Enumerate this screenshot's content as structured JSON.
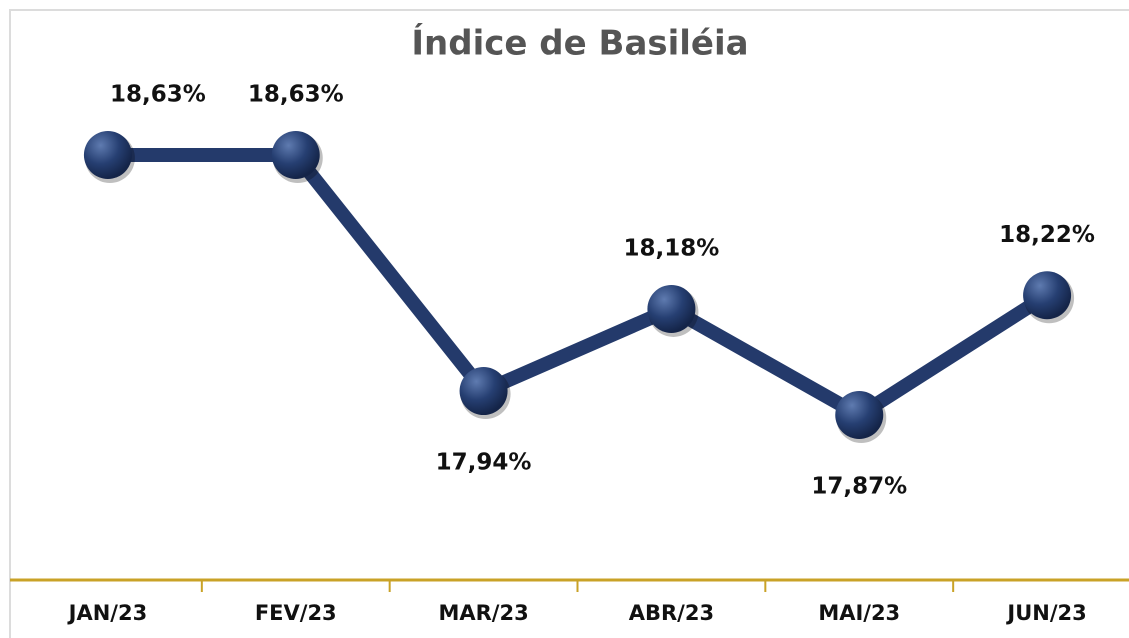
{
  "chart_data": {
    "type": "line",
    "title": "Índice de Basiléia",
    "categories": [
      "JAN/23",
      "FEV/23",
      "MAR/23",
      "ABR/23",
      "MAI/23",
      "JUN/23"
    ],
    "series": [
      {
        "color": "#243a6b",
        "values": [
          18.63,
          18.63,
          17.94,
          18.18,
          17.87,
          18.22
        ],
        "value_labels": [
          "18,63%",
          "18,63%",
          "17,94%",
          "18,18%",
          "17,87%",
          "18,22%"
        ]
      }
    ]
  }
}
